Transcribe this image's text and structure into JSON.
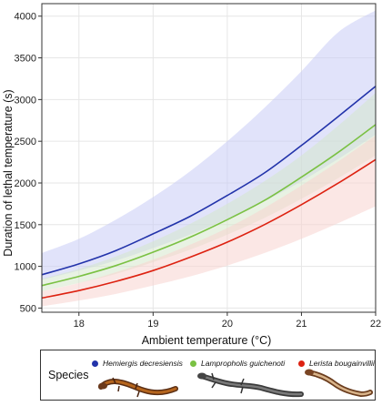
{
  "chart_data": {
    "type": "line",
    "title": "",
    "xlabel": "Ambient temperature (°C)",
    "ylabel": "Duration of lethal temperature (s)",
    "xlim": [
      17.5,
      22
    ],
    "ylim": [
      450,
      4150
    ],
    "x_ticks": [
      "18",
      "19",
      "20",
      "21",
      "22"
    ],
    "y_ticks": [
      "500",
      "1000",
      "1500",
      "2000",
      "2500",
      "3000",
      "3500",
      "4000"
    ],
    "grid": true,
    "x": [
      17.5,
      18,
      18.5,
      19,
      19.5,
      20,
      20.5,
      21,
      21.5,
      22
    ],
    "series": [
      {
        "name": "Hemiergis decresiensis",
        "color": "#2233aa",
        "fill": "#c9ccf5",
        "values": [
          900,
          1030,
          1190,
          1390,
          1600,
          1850,
          2120,
          2450,
          2800,
          3160
        ],
        "lower": [
          840,
          950,
          1070,
          1220,
          1380,
          1570,
          1780,
          2020,
          2290,
          2580
        ],
        "upper": [
          1160,
          1330,
          1560,
          1830,
          2140,
          2500,
          2900,
          3340,
          3810,
          4070
        ]
      },
      {
        "name": "Lampropholis guichenoti",
        "color": "#7ac143",
        "fill": "#d6e8cc",
        "values": [
          770,
          880,
          1010,
          1170,
          1350,
          1560,
          1790,
          2070,
          2370,
          2700
        ],
        "lower": [
          700,
          800,
          910,
          1050,
          1200,
          1380,
          1580,
          1810,
          2060,
          2330
        ],
        "upper": [
          850,
          970,
          1120,
          1300,
          1510,
          1750,
          2020,
          2330,
          2690,
          3080
        ]
      },
      {
        "name": "Lerista bougainvillii",
        "color": "#dd2211",
        "fill": "#f7d4cf",
        "values": [
          620,
          710,
          820,
          950,
          1110,
          1290,
          1500,
          1740,
          2000,
          2280
        ],
        "lower": [
          520,
          590,
          670,
          770,
          880,
          1010,
          1160,
          1330,
          1520,
          1720
        ],
        "upper": [
          700,
          800,
          930,
          1080,
          1260,
          1460,
          1700,
          1970,
          2260,
          2570
        ]
      }
    ],
    "legend": {
      "title": "Species",
      "placement": "bottom"
    }
  }
}
